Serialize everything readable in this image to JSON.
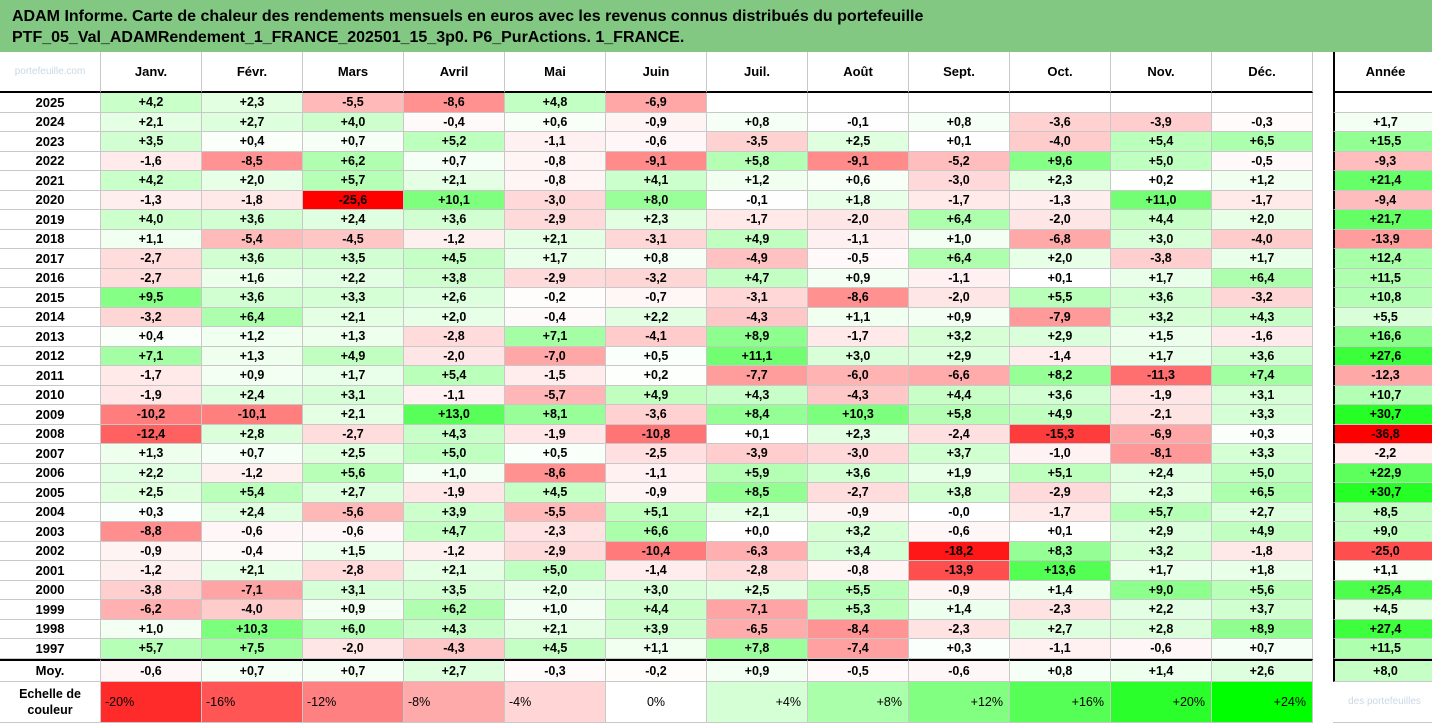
{
  "title_line1": "ADAM Informe. Carte de chaleur des rendements mensuels en euros avec les revenus connus distribués du portefeuille",
  "title_line2": "PTF_05_Val_ADAMRendement_1_FRANCE_202501_15_3p0. P6_PurActions. 1_FRANCE.",
  "corner_label": "portefeuille.com",
  "annee_label": "Année",
  "average_label": "Moy.",
  "scale_label": "Echelle de couleur",
  "footer_faint": "des portefeuilles",
  "colors": {
    "negative": "#ff0000",
    "positive": "#00ff00",
    "neutral": "#ffffff",
    "title_bg": "#82c882"
  },
  "chart_data": {
    "type": "heatmap",
    "months": [
      "Janv.",
      "Févr.",
      "Mars",
      "Avril",
      "Mai",
      "Juin",
      "Juil.",
      "Août",
      "Sept.",
      "Oct.",
      "Nov.",
      "Déc."
    ],
    "rows": [
      {
        "year": "2025",
        "months": [
          "+4,2",
          "+2,3",
          "-5,5",
          "-8,6",
          "+4,8",
          "-6,9",
          "",
          "",
          "",
          "",
          "",
          ""
        ],
        "annual": ""
      },
      {
        "year": "2024",
        "months": [
          "+2,1",
          "+2,7",
          "+4,0",
          "-0,4",
          "+0,6",
          "-0,9",
          "+0,8",
          "-0,1",
          "+0,8",
          "-3,6",
          "-3,9",
          "-0,3"
        ],
        "annual": "+1,7"
      },
      {
        "year": "2023",
        "months": [
          "+3,5",
          "+0,4",
          "+0,7",
          "+5,2",
          "-1,1",
          "-0,6",
          "-3,5",
          "+2,5",
          "+0,1",
          "-4,0",
          "+5,4",
          "+6,5"
        ],
        "annual": "+15,5"
      },
      {
        "year": "2022",
        "months": [
          "-1,6",
          "-8,5",
          "+6,2",
          "+0,7",
          "-0,8",
          "-9,1",
          "+5,8",
          "-9,1",
          "-5,2",
          "+9,6",
          "+5,0",
          "-0,5"
        ],
        "annual": "-9,3"
      },
      {
        "year": "2021",
        "months": [
          "+4,2",
          "+2,0",
          "+5,7",
          "+2,1",
          "-0,8",
          "+4,1",
          "+1,2",
          "+0,6",
          "-3,0",
          "+2,3",
          "+0,2",
          "+1,2"
        ],
        "annual": "+21,4"
      },
      {
        "year": "2020",
        "months": [
          "-1,3",
          "-1,8",
          "-25,6",
          "+10,1",
          "-3,0",
          "+8,0",
          "-0,1",
          "+1,8",
          "-1,7",
          "-1,3",
          "+11,0",
          "-1,7"
        ],
        "annual": "-9,4"
      },
      {
        "year": "2019",
        "months": [
          "+4,0",
          "+3,6",
          "+2,4",
          "+3,6",
          "-2,9",
          "+2,3",
          "-1,7",
          "-2,0",
          "+6,4",
          "-2,0",
          "+4,4",
          "+2,0"
        ],
        "annual": "+21,7"
      },
      {
        "year": "2018",
        "months": [
          "+1,1",
          "-5,4",
          "-4,5",
          "-1,2",
          "+2,1",
          "-3,1",
          "+4,9",
          "-1,1",
          "+1,0",
          "-6,8",
          "+3,0",
          "-4,0"
        ],
        "annual": "-13,9"
      },
      {
        "year": "2017",
        "months": [
          "-2,7",
          "+3,6",
          "+3,5",
          "+4,5",
          "+1,7",
          "+0,8",
          "-4,9",
          "-0,5",
          "+6,4",
          "+2,0",
          "-3,8",
          "+1,7"
        ],
        "annual": "+12,4"
      },
      {
        "year": "2016",
        "months": [
          "-2,7",
          "+1,6",
          "+2,2",
          "+3,8",
          "-2,9",
          "-3,2",
          "+4,7",
          "+0,9",
          "-1,1",
          "+0,1",
          "+1,7",
          "+6,4"
        ],
        "annual": "+11,5"
      },
      {
        "year": "2015",
        "months": [
          "+9,5",
          "+3,6",
          "+3,3",
          "+2,6",
          "-0,2",
          "-0,7",
          "-3,1",
          "-8,6",
          "-2,0",
          "+5,5",
          "+3,6",
          "-3,2"
        ],
        "annual": "+10,8"
      },
      {
        "year": "2014",
        "months": [
          "-3,2",
          "+6,4",
          "+2,1",
          "+2,0",
          "-0,4",
          "+2,2",
          "-4,3",
          "+1,1",
          "+0,9",
          "-7,9",
          "+3,2",
          "+4,3"
        ],
        "annual": "+5,5"
      },
      {
        "year": "2013",
        "months": [
          "+0,4",
          "+1,2",
          "+1,3",
          "-2,8",
          "+7,1",
          "-4,1",
          "+8,9",
          "-1,7",
          "+3,2",
          "+2,9",
          "+1,5",
          "-1,6"
        ],
        "annual": "+16,6"
      },
      {
        "year": "2012",
        "months": [
          "+7,1",
          "+1,3",
          "+4,9",
          "-2,0",
          "-7,0",
          "+0,5",
          "+11,1",
          "+3,0",
          "+2,9",
          "-1,4",
          "+1,7",
          "+3,6"
        ],
        "annual": "+27,6"
      },
      {
        "year": "2011",
        "months": [
          "-1,7",
          "+0,9",
          "+1,7",
          "+5,4",
          "-1,5",
          "+0,2",
          "-7,7",
          "-6,0",
          "-6,6",
          "+8,2",
          "-11,3",
          "+7,4"
        ],
        "annual": "-12,3"
      },
      {
        "year": "2010",
        "months": [
          "-1,9",
          "+2,4",
          "+3,1",
          "-1,1",
          "-5,7",
          "+4,9",
          "+4,3",
          "-4,3",
          "+4,4",
          "+3,6",
          "-1,9",
          "+3,1"
        ],
        "annual": "+10,7"
      },
      {
        "year": "2009",
        "months": [
          "-10,2",
          "-10,1",
          "+2,1",
          "+13,0",
          "+8,1",
          "-3,6",
          "+8,4",
          "+10,3",
          "+5,8",
          "+4,9",
          "-2,1",
          "+3,3"
        ],
        "annual": "+30,7"
      },
      {
        "year": "2008",
        "months": [
          "-12,4",
          "+2,8",
          "-2,7",
          "+4,3",
          "-1,9",
          "-10,8",
          "+0,1",
          "+2,3",
          "-2,4",
          "-15,3",
          "-6,9",
          "+0,3"
        ],
        "annual": "-36,8"
      },
      {
        "year": "2007",
        "months": [
          "+1,3",
          "+0,7",
          "+2,5",
          "+5,0",
          "+0,5",
          "-2,5",
          "-3,9",
          "-3,0",
          "+3,7",
          "-1,0",
          "-8,1",
          "+3,3"
        ],
        "annual": "-2,2"
      },
      {
        "year": "2006",
        "months": [
          "+2,2",
          "-1,2",
          "+5,6",
          "+1,0",
          "-8,6",
          "-1,1",
          "+5,9",
          "+3,6",
          "+1,9",
          "+5,1",
          "+2,4",
          "+5,0"
        ],
        "annual": "+22,9"
      },
      {
        "year": "2005",
        "months": [
          "+2,5",
          "+5,4",
          "+2,7",
          "-1,9",
          "+4,5",
          "-0,9",
          "+8,5",
          "-2,7",
          "+3,8",
          "-2,9",
          "+2,3",
          "+6,5"
        ],
        "annual": "+30,7"
      },
      {
        "year": "2004",
        "months": [
          "+0,3",
          "+2,4",
          "-5,6",
          "+3,9",
          "-5,5",
          "+5,1",
          "+2,1",
          "-0,9",
          "-0,0",
          "-1,7",
          "+5,7",
          "+2,7"
        ],
        "annual": "+8,5"
      },
      {
        "year": "2003",
        "months": [
          "-8,8",
          "-0,6",
          "-0,6",
          "+4,7",
          "-2,3",
          "+6,6",
          "+0,0",
          "+3,2",
          "-0,6",
          "+0,1",
          "+2,9",
          "+4,9"
        ],
        "annual": "+9,0"
      },
      {
        "year": "2002",
        "months": [
          "-0,9",
          "-0,4",
          "+1,5",
          "-1,2",
          "-2,9",
          "-10,4",
          "-6,3",
          "+3,4",
          "-18,2",
          "+8,3",
          "+3,2",
          "-1,8"
        ],
        "annual": "-25,0"
      },
      {
        "year": "2001",
        "months": [
          "-1,2",
          "+2,1",
          "-2,8",
          "+2,1",
          "+5,0",
          "-1,4",
          "-2,8",
          "-0,8",
          "-13,9",
          "+13,6",
          "+1,7",
          "+1,8"
        ],
        "annual": "+1,1"
      },
      {
        "year": "2000",
        "months": [
          "-3,8",
          "-7,1",
          "+3,1",
          "+3,5",
          "+2,0",
          "+3,0",
          "+2,5",
          "+5,5",
          "-0,9",
          "+1,4",
          "+9,0",
          "+5,6"
        ],
        "annual": "+25,4"
      },
      {
        "year": "1999",
        "months": [
          "-6,2",
          "-4,0",
          "+0,9",
          "+6,2",
          "+1,0",
          "+4,4",
          "-7,1",
          "+5,3",
          "+1,4",
          "-2,3",
          "+2,2",
          "+3,7"
        ],
        "annual": "+4,5"
      },
      {
        "year": "1998",
        "months": [
          "+1,0",
          "+10,3",
          "+6,0",
          "+4,3",
          "+2,1",
          "+3,9",
          "-6,5",
          "-8,4",
          "-2,3",
          "+2,7",
          "+2,8",
          "+8,9"
        ],
        "annual": "+27,4"
      },
      {
        "year": "1997",
        "months": [
          "+5,7",
          "+7,5",
          "-2,0",
          "-4,3",
          "+4,5",
          "+1,1",
          "+7,8",
          "-7,4",
          "+0,3",
          "-1,1",
          "-0,6",
          "+0,7"
        ],
        "annual": "+11,5"
      }
    ],
    "average": {
      "months": [
        "-0,6",
        "+0,7",
        "+0,7",
        "+2,7",
        "-0,3",
        "-0,2",
        "+0,9",
        "-0,5",
        "-0,6",
        "+0,8",
        "+1,4",
        "+2,6"
      ],
      "annual": "+8,0"
    },
    "color_scale": [
      {
        "label": "-20%",
        "value": -20
      },
      {
        "label": "-16%",
        "value": -16
      },
      {
        "label": "-12%",
        "value": -12
      },
      {
        "label": "-8%",
        "value": -8
      },
      {
        "label": "-4%",
        "value": -4
      },
      {
        "label": "0%",
        "value": 0
      },
      {
        "label": "+4%",
        "value": 4
      },
      {
        "label": "+8%",
        "value": 8
      },
      {
        "label": "+12%",
        "value": 12
      },
      {
        "label": "+16%",
        "value": 16
      },
      {
        "label": "+20%",
        "value": 20
      },
      {
        "label": "+24%",
        "value": 24
      }
    ]
  }
}
